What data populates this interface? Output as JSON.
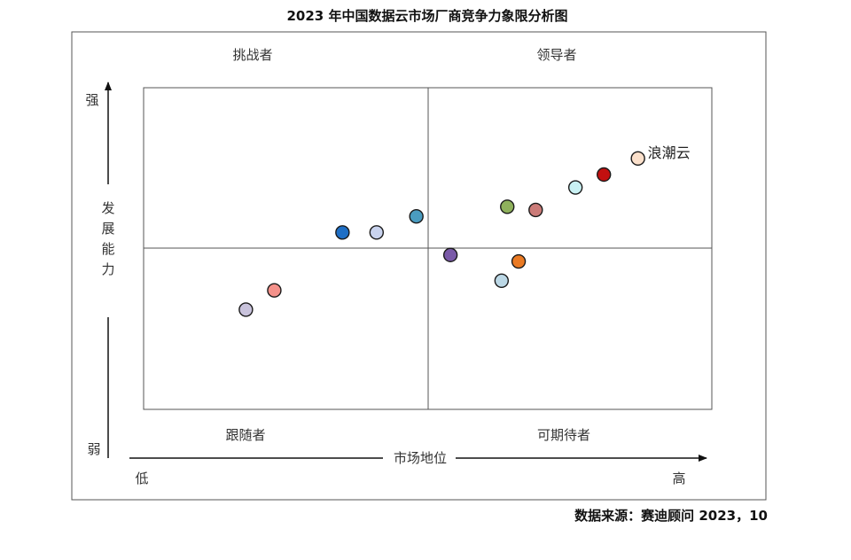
{
  "chart_data": {
    "type": "scatter",
    "title": "2023 年中国数据云市场厂商竞争力象限分析图",
    "xlabel": "市场地位",
    "ylabel": "发展能力",
    "x_low": "低",
    "x_high": "高",
    "y_high": "强",
    "y_low": "弱",
    "xlim": [
      0,
      10
    ],
    "ylim": [
      0,
      10
    ],
    "quadrants": {
      "top_left": "挑战者",
      "top_right": "领导者",
      "bottom_left": "跟随者",
      "bottom_right": "可期待者"
    },
    "source": "数据来源：赛迪顾问  2023，10",
    "grid": false,
    "points": [
      {
        "x": 1.8,
        "y": 3.1,
        "color": "#c9c3dc",
        "label": ""
      },
      {
        "x": 2.3,
        "y": 3.7,
        "color": "#f4918a",
        "label": ""
      },
      {
        "x": 3.5,
        "y": 5.5,
        "color": "#1f6fc5",
        "label": ""
      },
      {
        "x": 4.1,
        "y": 5.5,
        "color": "#c9d3ee",
        "label": ""
      },
      {
        "x": 4.8,
        "y": 6.0,
        "color": "#4a9cc0",
        "label": ""
      },
      {
        "x": 5.4,
        "y": 4.8,
        "color": "#7a5aa8",
        "label": ""
      },
      {
        "x": 6.3,
        "y": 4.0,
        "color": "#bcd8e6",
        "label": ""
      },
      {
        "x": 6.6,
        "y": 4.6,
        "color": "#ea7a23",
        "label": ""
      },
      {
        "x": 6.4,
        "y": 6.3,
        "color": "#8fb15c",
        "label": ""
      },
      {
        "x": 6.9,
        "y": 6.2,
        "color": "#cb7b78",
        "label": ""
      },
      {
        "x": 7.6,
        "y": 6.9,
        "color": "#c9f1f3",
        "label": ""
      },
      {
        "x": 8.1,
        "y": 7.3,
        "color": "#c21010",
        "label": ""
      },
      {
        "x": 8.7,
        "y": 7.8,
        "color": "#fbe0cb",
        "label": "浪潮云"
      }
    ]
  }
}
